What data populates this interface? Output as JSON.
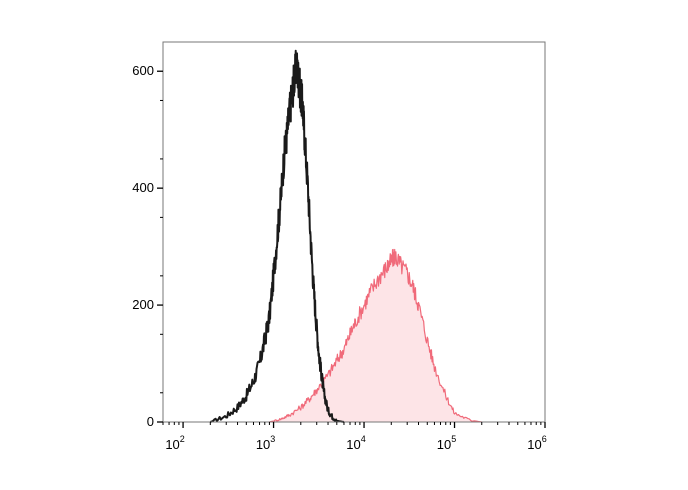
{
  "chart_data": {
    "type": "area",
    "title": "",
    "xlabel": "",
    "ylabel": "",
    "x_scale": "log",
    "xlim": [
      60,
      1000000
    ],
    "ylim": [
      0,
      650
    ],
    "grid": false,
    "legend": "none",
    "x_ticks": [
      {
        "base": "10",
        "exp": "2",
        "value": 100
      },
      {
        "base": "10",
        "exp": "3",
        "value": 1000
      },
      {
        "base": "10",
        "exp": "4",
        "value": 10000
      },
      {
        "base": "10",
        "exp": "5",
        "value": 100000
      },
      {
        "base": "10",
        "exp": "6",
        "value": 1000000
      }
    ],
    "y_ticks": [
      {
        "label": "0",
        "value": 0
      },
      {
        "label": "200",
        "value": 200
      },
      {
        "label": "400",
        "value": 400
      },
      {
        "label": "600",
        "value": 600
      }
    ],
    "series": [
      {
        "color": "#1a1a1a",
        "fill": "none",
        "x": [
          200,
          300,
          400,
          500,
          600,
          700,
          800,
          900,
          1000,
          1100,
          1200,
          1300,
          1400,
          1500,
          1600,
          1700,
          1800,
          1900,
          2000,
          2100,
          2200,
          2400,
          2600,
          2800,
          3000,
          3200,
          3400,
          3600,
          4000,
          4500,
          5000,
          6000
        ],
        "y": [
          0,
          10,
          25,
          45,
          70,
          100,
          140,
          180,
          250,
          320,
          380,
          450,
          490,
          530,
          560,
          590,
          610,
          585,
          560,
          540,
          490,
          400,
          300,
          220,
          160,
          110,
          80,
          50,
          20,
          8,
          2,
          0
        ]
      },
      {
        "color": "#f06a7a",
        "fill": "#fde4e7",
        "x": [
          900,
          1200,
          1500,
          2000,
          2500,
          3000,
          4000,
          5000,
          6000,
          7000,
          8000,
          10000,
          12000,
          15000,
          18000,
          20000,
          22000,
          25000,
          30000,
          35000,
          40000,
          50000,
          60000,
          80000,
          100000,
          150000,
          200000
        ],
        "y": [
          0,
          5,
          12,
          25,
          40,
          55,
          80,
          105,
          125,
          150,
          170,
          200,
          225,
          250,
          265,
          275,
          285,
          270,
          255,
          230,
          200,
          140,
          95,
          45,
          15,
          3,
          0
        ]
      }
    ]
  }
}
